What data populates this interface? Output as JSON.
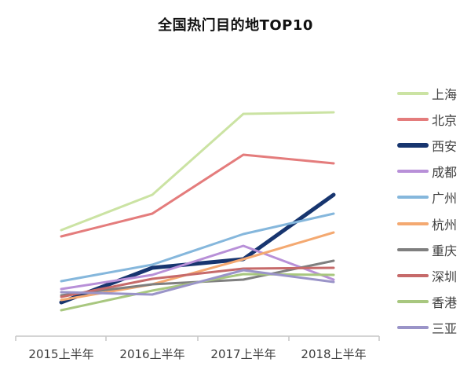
{
  "title": "全国热门目的地TOP10",
  "axis": {
    "x_tick_color": "#c6c6c6",
    "x_label_color": "#3d3d3d"
  },
  "chart_data": {
    "type": "line",
    "title": "全国热门目的地TOP10",
    "categories": [
      "2015上半年",
      "2016上半年",
      "2017上半年",
      "2018上半年"
    ],
    "xlabel": "",
    "ylabel": "",
    "y_axis_visible": false,
    "grid": false,
    "legend_position": "right",
    "value_unit": "relative popularity (pixel height above baseline; chart shows no numeric y-axis)",
    "series": [
      {
        "name": "上海",
        "id": "shanghai",
        "color": "#cbe3a3",
        "width": 3,
        "values": [
          135,
          180,
          283,
          285
        ]
      },
      {
        "name": "北京",
        "id": "beijing",
        "color": "#e47c7c",
        "width": 3,
        "values": [
          127,
          156,
          231,
          220
        ]
      },
      {
        "name": "西安",
        "id": "xian",
        "color": "#17356f",
        "width": 5,
        "values": [
          43,
          87,
          98,
          180
        ]
      },
      {
        "name": "成都",
        "id": "chengdu",
        "color": "#b890d8",
        "width": 3,
        "values": [
          60,
          78,
          115,
          72
        ]
      },
      {
        "name": "广州",
        "id": "guangzhou",
        "color": "#85b7dc",
        "width": 3,
        "values": [
          70,
          91,
          130,
          156
        ]
      },
      {
        "name": "杭州",
        "id": "hangzhou",
        "color": "#f4a971",
        "width": 3,
        "values": [
          46,
          66,
          98,
          132
        ]
      },
      {
        "name": "重庆",
        "id": "chongqing",
        "color": "#7f7f7f",
        "width": 3,
        "values": [
          52,
          66,
          72,
          96
        ]
      },
      {
        "name": "深圳",
        "id": "shenzhen",
        "color": "#c66a6a",
        "width": 3,
        "values": [
          50,
          73,
          86,
          87
        ]
      },
      {
        "name": "香港",
        "id": "hongkong",
        "color": "#a8c77f",
        "width": 3,
        "values": [
          33,
          58,
          79,
          78
        ]
      },
      {
        "name": "三亚",
        "id": "sanya",
        "color": "#9a94c8",
        "width": 3,
        "values": [
          56,
          53,
          84,
          69
        ]
      }
    ]
  }
}
